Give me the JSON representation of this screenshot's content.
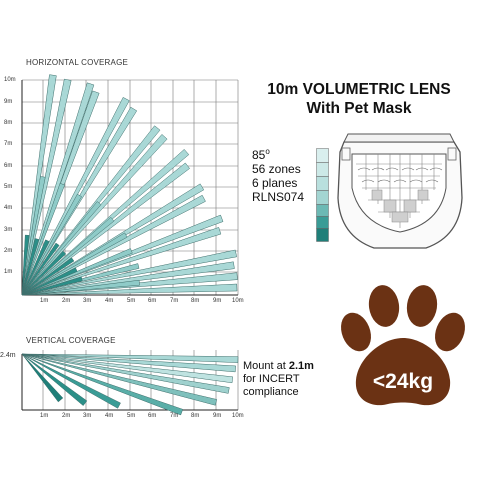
{
  "horizontal": {
    "title": "HORIZONTAL COVERAGE",
    "y_ticks": [
      "10m",
      "9m",
      "8m",
      "7m",
      "6m",
      "5m",
      "4m",
      "3m",
      "2m",
      "1m"
    ],
    "x_ticks": [
      "1m",
      "2m",
      "3m",
      "4m",
      "5m",
      "6m",
      "7m",
      "8m",
      "9m",
      "10m"
    ]
  },
  "vertical": {
    "title": "VERTICAL COVERAGE",
    "height_label": "2.4m",
    "x_ticks": [
      "1m",
      "2m",
      "3m",
      "4m",
      "5m",
      "6m",
      "7m",
      "8m",
      "9m",
      "10m"
    ]
  },
  "product": {
    "title_line1": "10m VOLUMETRIC LENS",
    "title_line2": "With Pet Mask"
  },
  "specs": {
    "angle": "85",
    "angle_unit": "o",
    "zones": "56 zones",
    "planes": "6 planes",
    "model": "RLNS074"
  },
  "mount": {
    "prefix": "Mount at ",
    "height": "2.1m",
    "line2": "for INCERT",
    "line3": "compliance"
  },
  "pet": {
    "weight": "<24kg"
  },
  "colors": {
    "beam_light": "#a9d8d6",
    "beam_dark": "#2b8f88",
    "paw": "#6b3214"
  }
}
